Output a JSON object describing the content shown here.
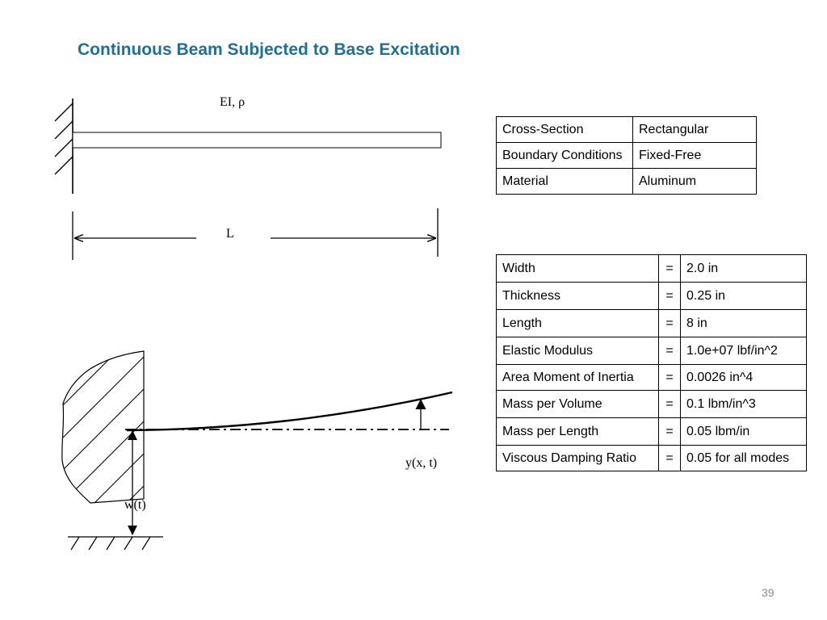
{
  "slide": {
    "title": "Continuous Beam Subjected to Base Excitation",
    "page_number": "39"
  },
  "diagram": {
    "beam_property_label": "EI, ρ",
    "length_label": "L",
    "response_label": "y(x, t)",
    "base_input_label": "w(t)"
  },
  "table_main": {
    "rows": [
      {
        "key": "Cross-Section",
        "value": "Rectangular"
      },
      {
        "key": "Boundary Conditions",
        "value": "Fixed-Free"
      },
      {
        "key": "Material",
        "value": "Aluminum"
      }
    ]
  },
  "table_params": {
    "rows": [
      {
        "key": "Width",
        "eq": "=",
        "value": "2.0 in"
      },
      {
        "key": "Thickness",
        "eq": "=",
        "value": "0.25 in"
      },
      {
        "key": "Length",
        "eq": "=",
        "value": "8 in"
      },
      {
        "key": "Elastic Modulus",
        "eq": "=",
        "value": "1.0e+07 lbf/in^2"
      },
      {
        "key": "Area Moment of Inertia",
        "eq": "=",
        "value": "0.0026 in^4"
      },
      {
        "key": "Mass per Volume",
        "eq": "=",
        "value": "0.1 lbm/in^3"
      },
      {
        "key": "Mass per Length",
        "eq": "=",
        "value": "0.05 lbm/in"
      },
      {
        "key": "Viscous Damping Ratio",
        "eq": "=",
        "value": "0.05 for all modes"
      }
    ]
  }
}
